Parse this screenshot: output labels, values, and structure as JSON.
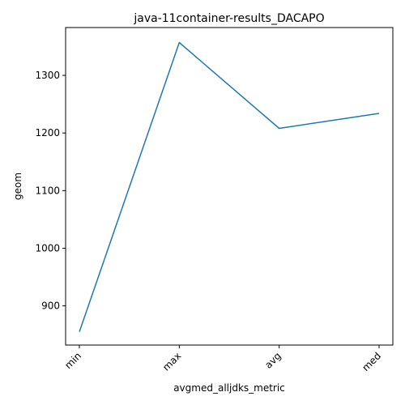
{
  "chart_data": {
    "type": "line",
    "title": "java-11container-results_DACAPO",
    "xlabel": "avgmed_alljdks_metric",
    "ylabel": "geom",
    "categories": [
      "min",
      "max",
      "avg",
      "med"
    ],
    "series": [
      {
        "values": [
          855,
          1357,
          1208,
          1234
        ],
        "color": "#1f77b4"
      }
    ],
    "ylim": [
      832,
      1383
    ],
    "yticks": [
      900,
      1000,
      1100,
      1200,
      1300
    ],
    "grid": false
  }
}
